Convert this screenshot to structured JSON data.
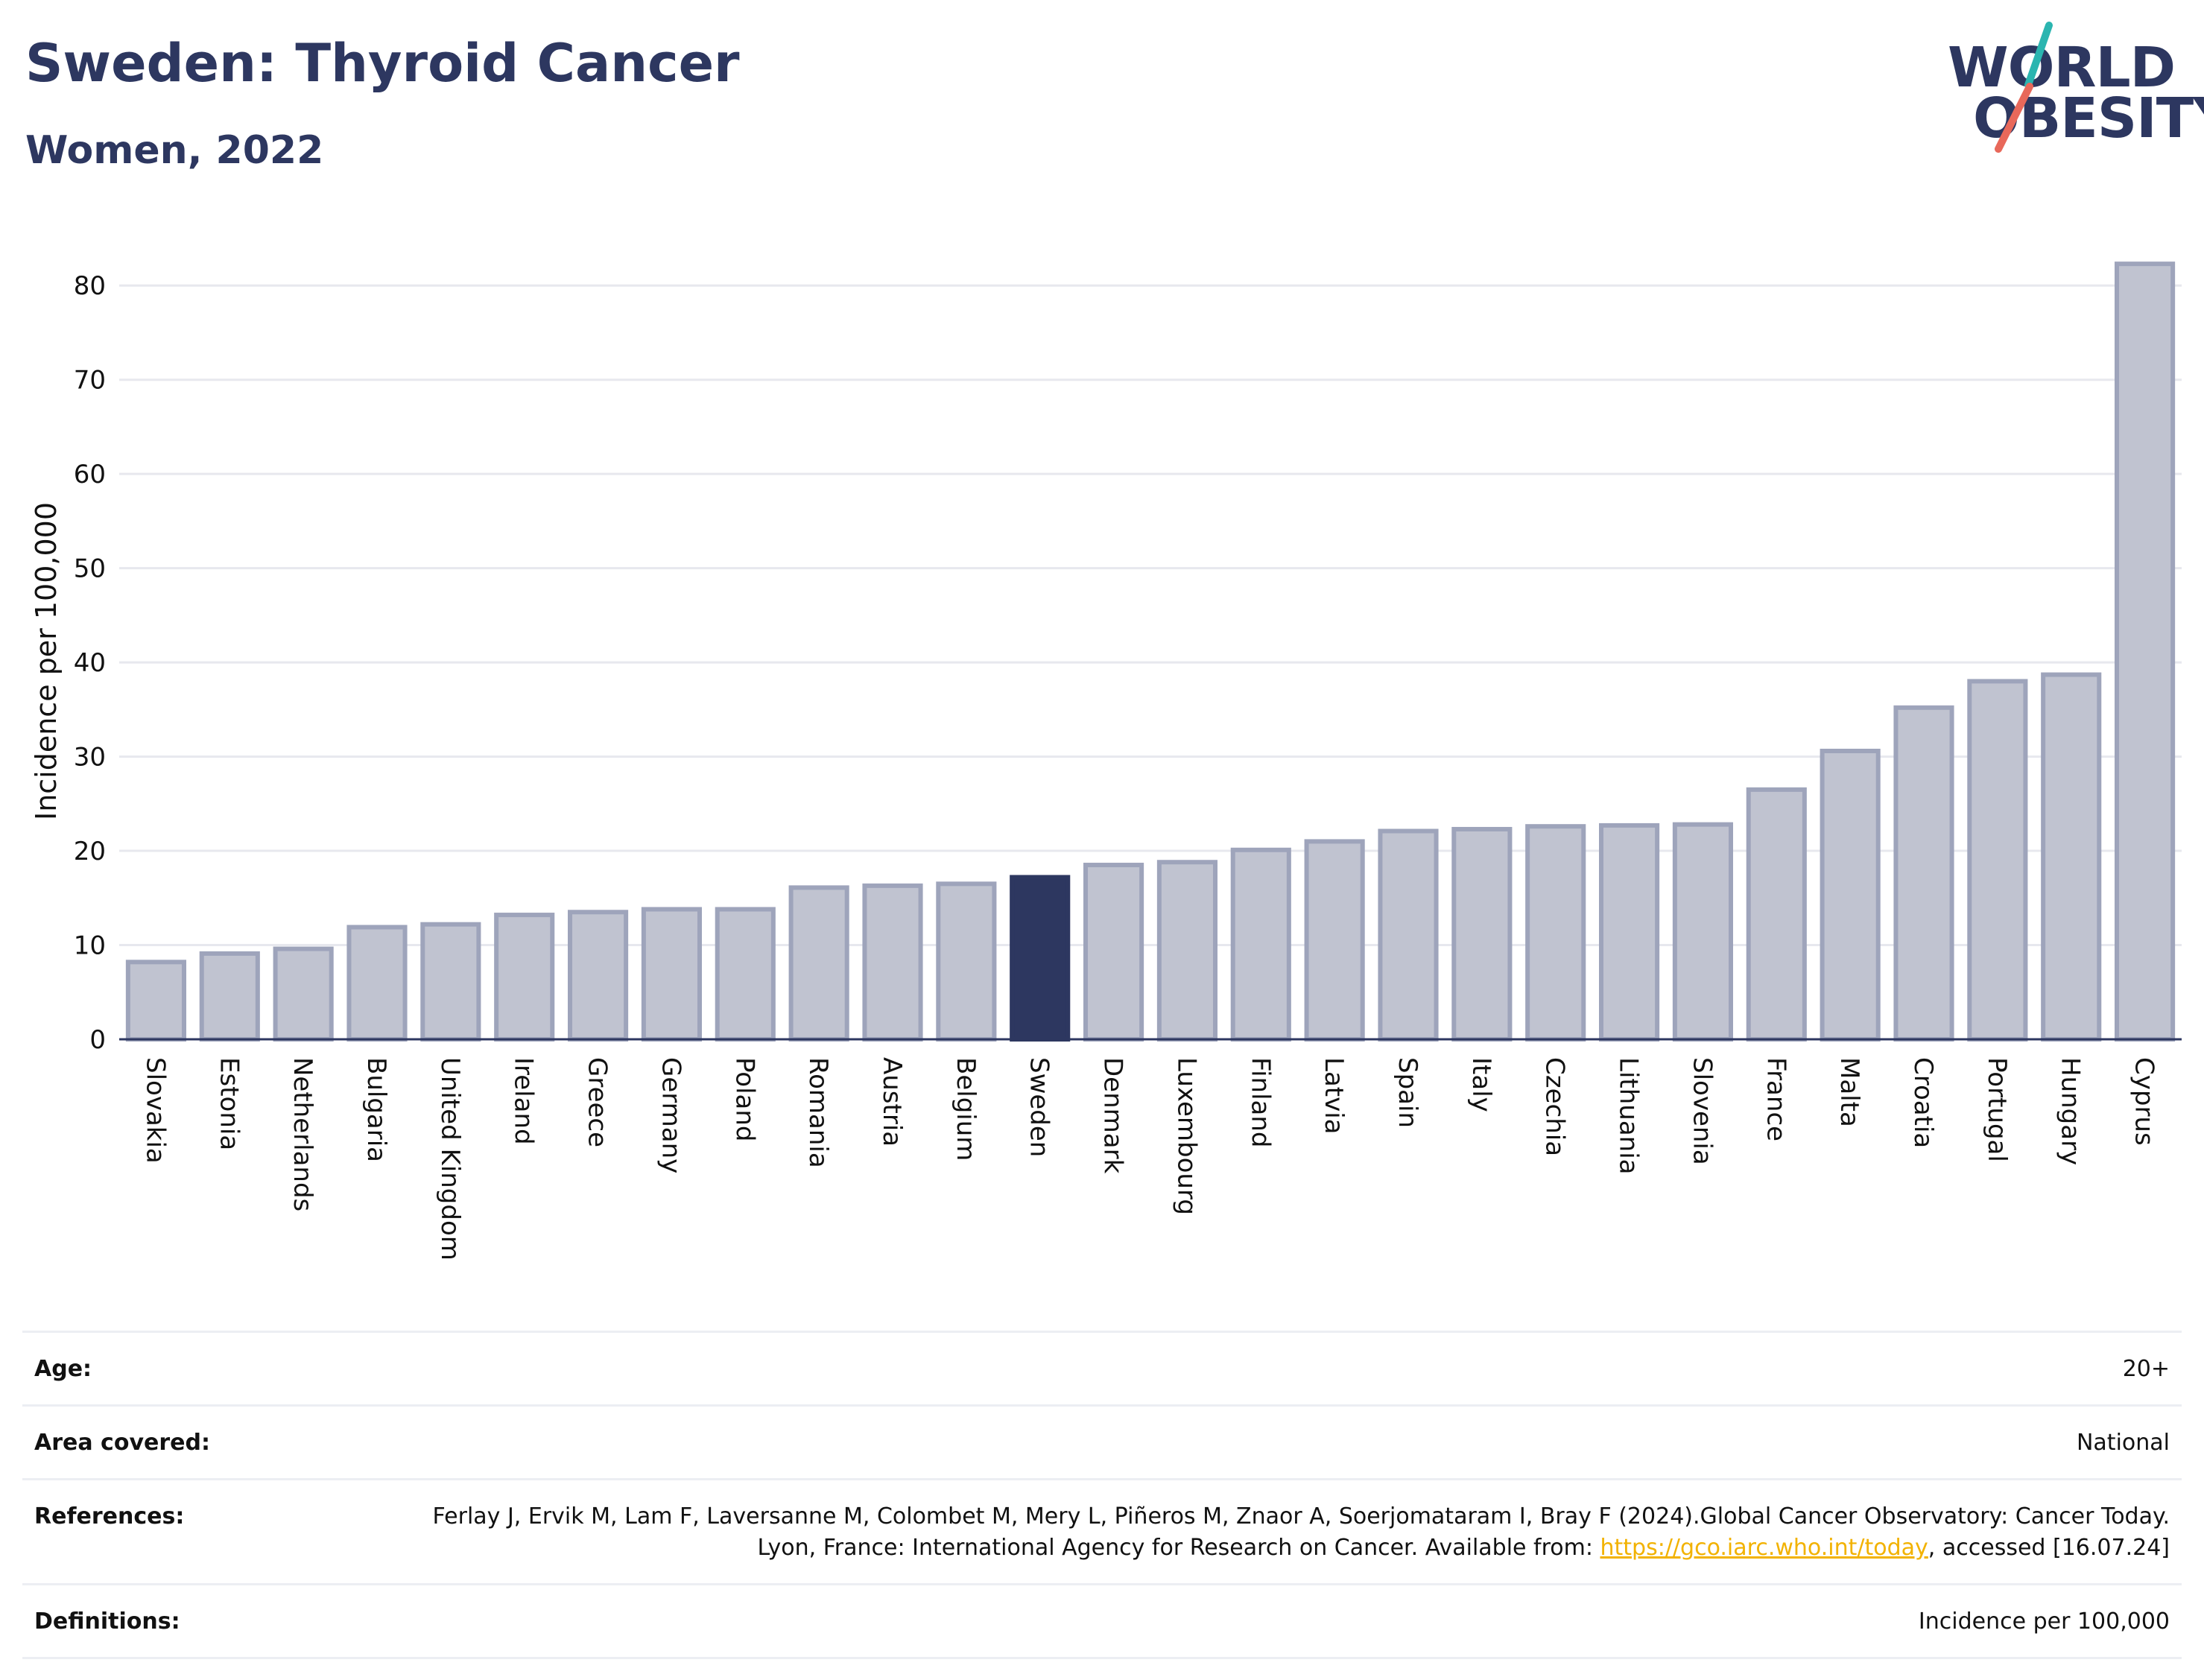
{
  "header": {
    "title": "Sweden: Thyroid Cancer",
    "subtitle": "Women, 2022"
  },
  "logo": {
    "line1": "WORLD",
    "line2": "OBESITY",
    "colors": {
      "text": "#2d3760",
      "teal": "#2bb5b0",
      "coral": "#e8685a"
    }
  },
  "chart_data": {
    "type": "bar",
    "title": "",
    "xlabel": "",
    "ylabel": "Incidence per 100,000",
    "ylim": [
      0,
      85
    ],
    "yticks": [
      0,
      10,
      20,
      30,
      40,
      50,
      60,
      70,
      80
    ],
    "grid": true,
    "highlight": "Sweden",
    "colors": {
      "bar": "#c0c3d0",
      "bar_border": "#9ea4bb",
      "highlight": "#2d3760"
    },
    "categories": [
      "Slovakia",
      "Estonia",
      "Netherlands",
      "Bulgaria",
      "United Kingdom",
      "Ireland",
      "Greece",
      "Germany",
      "Poland",
      "Romania",
      "Austria",
      "Belgium",
      "Sweden",
      "Denmark",
      "Luxembourg",
      "Finland",
      "Latvia",
      "Spain",
      "Italy",
      "Czechia",
      "Lithuania",
      "Slovenia",
      "France",
      "Malta",
      "Croatia",
      "Portugal",
      "Hungary",
      "Cyprus"
    ],
    "values": [
      8.2,
      9.1,
      9.6,
      11.9,
      12.2,
      13.2,
      13.5,
      13.8,
      13.8,
      16.1,
      16.3,
      16.5,
      17.2,
      18.5,
      18.8,
      20.1,
      21.0,
      22.1,
      22.3,
      22.6,
      22.7,
      22.8,
      26.5,
      30.6,
      35.2,
      38.0,
      38.7,
      82.3
    ]
  },
  "info": {
    "age_label": "Age:",
    "age_value": "20+",
    "area_label": "Area covered:",
    "area_value": "National",
    "references_label": "References:",
    "references_text_1": "Ferlay J, Ervik M, Lam F, Laversanne M, Colombet M, Mery L, Piñeros M, Znaor A, Soerjomataram I, Bray F (2024).Global Cancer Observatory: Cancer Today. Lyon, France: International Agency for Research on Cancer. Available from: ",
    "references_link": "https://gco.iarc.who.int/today",
    "references_text_2": ", accessed [16.07.24]",
    "definitions_label": "Definitions:",
    "definitions_value": "Incidence per 100,000"
  }
}
